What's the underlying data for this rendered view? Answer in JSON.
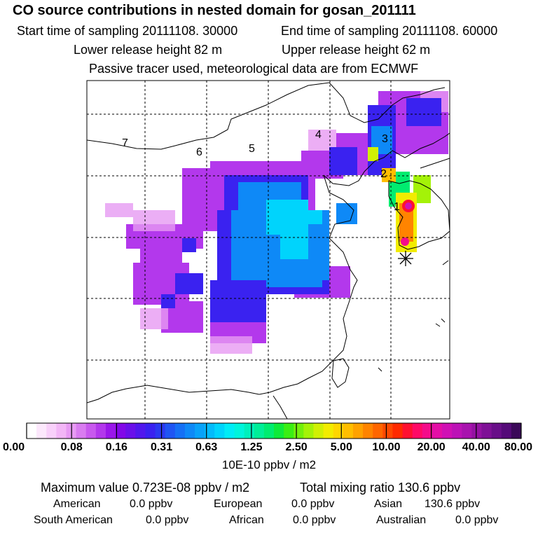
{
  "header": {
    "title": "CO  source contributions in nested domain for gosan_201111",
    "start_time": "Start time of sampling 20111108. 30000",
    "end_time": "End time of sampling 20111108. 60000",
    "lower_release": "Lower release height   82 m",
    "upper_release": "Upper release height   62 m",
    "tracer_note": "Passive tracer used, meteorological data are from ECMWF"
  },
  "map": {
    "receptor_icon": "asterisk-receptor-icon",
    "domain_labels": [
      "1",
      "2",
      "3",
      "4",
      "5",
      "6",
      "7"
    ]
  },
  "colorbar": {
    "labels": [
      "0.00",
      "0.08",
      "0.16",
      "0.31",
      "0.63",
      "1.25",
      "2.50",
      "5.00",
      "10.00",
      "20.00",
      "40.00",
      "80.00"
    ],
    "colors": [
      "#ffffff",
      "#fce8fc",
      "#f8d0fa",
      "#f2b6f6",
      "#e79af3",
      "#d97cf0",
      "#c859ee",
      "#b338ec",
      "#9a17ea",
      "#8208e8",
      "#6a10ea",
      "#5118ed",
      "#3a22f0",
      "#2b39f1",
      "#1f55f3",
      "#1570f5",
      "#0e89f7",
      "#08a2f9",
      "#03bbfb",
      "#00d4fc",
      "#00ecf6",
      "#00f4dc",
      "#00f0bc",
      "#00ee98",
      "#00ec70",
      "#0eea3a",
      "#3aee14",
      "#72f00c",
      "#a4f208",
      "#d0f004",
      "#f2ec00",
      "#ffd600",
      "#ffbe00",
      "#ffa200",
      "#ff8400",
      "#ff6600",
      "#ff4800",
      "#ff2a00",
      "#ff1030",
      "#ff0a66",
      "#f40c8a",
      "#e40ea6",
      "#d010b4",
      "#bc12b6",
      "#a813ae",
      "#9412a2",
      "#7e1096",
      "#680e88",
      "#540a78",
      "#3a0858"
    ],
    "units": "10E-10 ppbv / m2"
  },
  "summary": {
    "max_value": "Maximum value  0.723E-08 ppbv / m2",
    "total_mixing": "Total mixing ratio      130.6 ppbv",
    "american_label": "American",
    "american_value": "0.0 ppbv",
    "european_label": "European",
    "european_value": "0.0 ppbv",
    "asian_label": "Asian",
    "asian_value": "130.6 ppbv",
    "south_american_label": "South American",
    "south_american_value": "0.0 ppbv",
    "african_label": "African",
    "african_value": "0.0 ppbv",
    "australian_label": "Australian",
    "australian_value": "0.0 ppbv"
  }
}
